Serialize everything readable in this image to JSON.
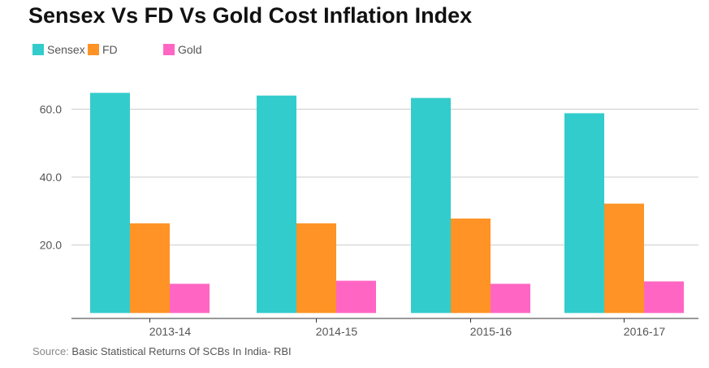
{
  "colors": {
    "sensex": "#33CCCC",
    "fd": "#FF9326",
    "gold": "#FF66C4",
    "grid": "#CCCCCC",
    "axis": "#333333",
    "tick_text": "#555555"
  },
  "chart_data": {
    "type": "bar",
    "title": "Sensex Vs FD Vs Gold Cost Inflation Index",
    "categories": [
      "2013-14",
      "2014-15",
      "2015-16",
      "2016-17"
    ],
    "series": [
      {
        "name": "Sensex",
        "color_key": "sensex",
        "values": [
          64.8,
          64.0,
          63.3,
          58.8
        ]
      },
      {
        "name": "FD",
        "color_key": "fd",
        "values": [
          26.4,
          26.4,
          27.8,
          32.2
        ]
      },
      {
        "name": "Gold",
        "color_key": "gold",
        "values": [
          8.6,
          9.5,
          8.6,
          9.3
        ]
      }
    ],
    "ylim": [
      -1.6,
      73.0
    ],
    "yticks": [
      20,
      40,
      60
    ],
    "ytick_labels": [
      "20.0",
      "40.0",
      "60.0"
    ],
    "grid": true,
    "legend_position": "top-left",
    "xlabel": "",
    "ylabel": ""
  },
  "source": {
    "prefix": "Source: ",
    "text": "Basic Statistical Returns Of SCBs In India- RBI"
  }
}
